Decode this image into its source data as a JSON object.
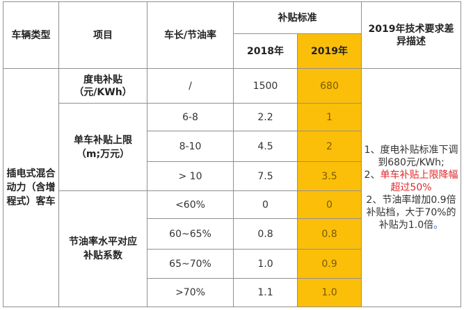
{
  "headers": {
    "vehicle_type": "车辆类型",
    "item": "项目",
    "length_fuel": "车长/节油率",
    "subsidy_standard": "补贴标准",
    "diff_desc": "2019年技术要求差异描述",
    "year_2018": "2018年",
    "year_2019": "2019年"
  },
  "vehicle_type": "插电式混合动力（含增程式）客车",
  "items": {
    "per_kwh": "度电补贴（元/KWh）",
    "cap": "单车补贴上限（m;万元）",
    "coef": "节油率水平对应补贴系数"
  },
  "rows": [
    {
      "spec": "/",
      "v2018": "1500",
      "v2019": "680"
    },
    {
      "spec": "6-8",
      "v2018": "2.2",
      "v2019": "1"
    },
    {
      "spec": "8-10",
      "v2018": "4.5",
      "v2019": "2"
    },
    {
      "spec": "> 10",
      "v2018": "7.5",
      "v2019": "3.5"
    },
    {
      "spec": "<60%",
      "v2018": "0",
      "v2019": "0"
    },
    {
      "spec": "60~65%",
      "v2018": "0.8",
      "v2019": "0.8"
    },
    {
      "spec": "65~70%",
      "v2018": "1.0",
      "v2019": "0.9"
    },
    {
      "spec": ">70%",
      "v2018": "1.1",
      "v2019": "1.0"
    }
  ],
  "description": {
    "l1": "1、度电补贴标准下调到680元/KWh;",
    "l2_prefix": "2、",
    "l2_red": "单车补贴上限降幅超过50%",
    "l3_main": "2、节油率增加0.9倍补贴档，大于70%的补贴为1.0倍",
    "l3_end": "。"
  },
  "colors": {
    "highlight": "#fbbf0a",
    "red_text": "#e0272b",
    "border": "#8f8f8f"
  }
}
